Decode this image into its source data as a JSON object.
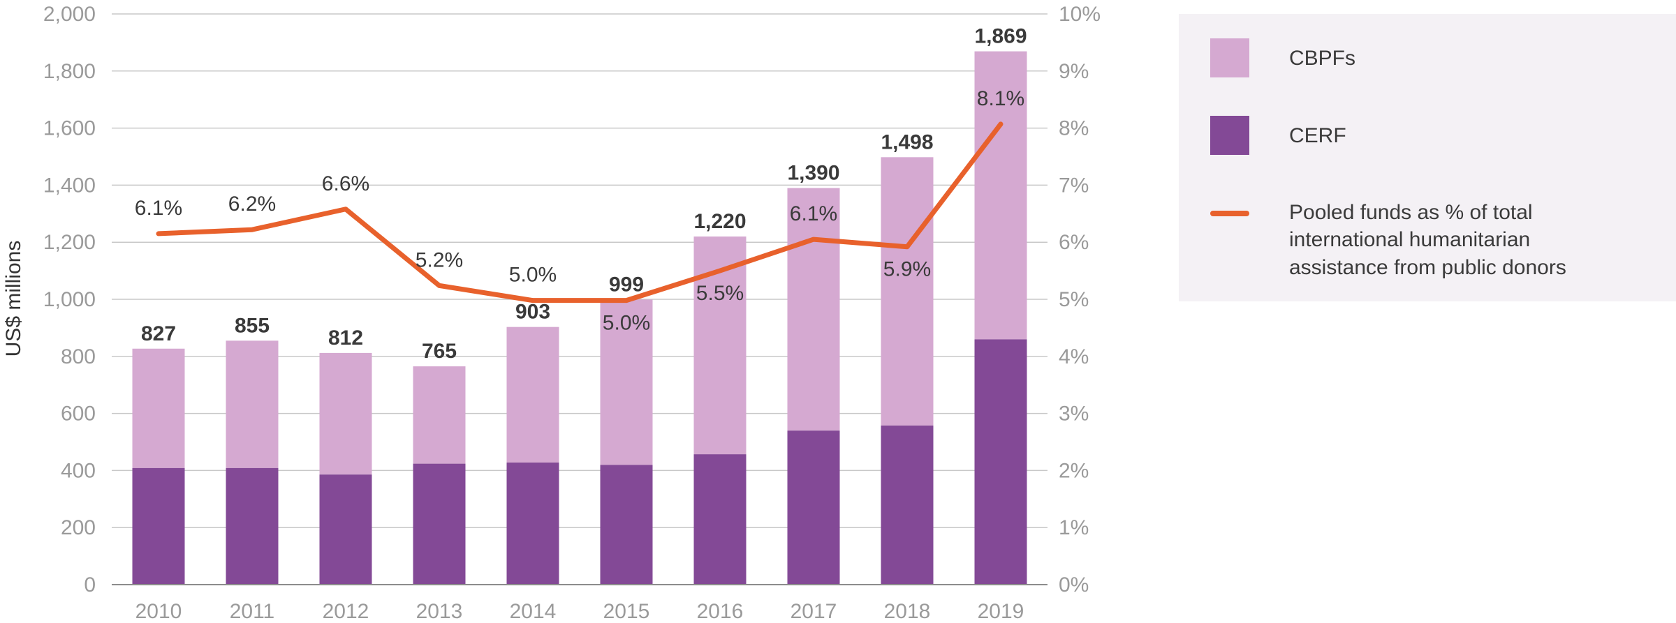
{
  "chart_data": {
    "type": "bar",
    "stacked": true,
    "categories": [
      "2010",
      "2011",
      "2012",
      "2013",
      "2014",
      "2015",
      "2016",
      "2017",
      "2018",
      "2019"
    ],
    "series": [
      {
        "name": "CERF",
        "color": "#834996",
        "values": [
          409,
          409,
          386,
          424,
          428,
          420,
          457,
          540,
          558,
          860
        ]
      },
      {
        "name": "CBPFs",
        "color": "#d5a9d1",
        "values": [
          418,
          446,
          426,
          341,
          475,
          579,
          763,
          850,
          940,
          1009
        ]
      }
    ],
    "totals": [
      "827",
      "855",
      "812",
      "765",
      "903",
      "999",
      "1,220",
      "1,390",
      "1,498",
      "1,869"
    ],
    "line_series": {
      "name": "Pooled funds as % of total international humanitarian assistance from public donors",
      "name_lines": [
        "Pooled funds as % of total",
        "international humanitarian",
        "assistance from public donors"
      ],
      "color": "#e8612c",
      "values": [
        6.15,
        6.22,
        6.58,
        5.24,
        4.98,
        4.98,
        5.5,
        6.05,
        5.92,
        8.07
      ],
      "labels": [
        "6.1%",
        "6.2%",
        "6.6%",
        "5.2%",
        "5.0%",
        "5.0%",
        "5.5%",
        "6.1%",
        "5.9%",
        "8.1%"
      ],
      "label_position": [
        "above",
        "above",
        "above",
        "above",
        "above",
        "below",
        "below",
        "above",
        "below",
        "above"
      ],
      "axis": "right"
    },
    "ylabel": "US$ millions",
    "ylim": [
      0,
      2000
    ],
    "y_ticks": [
      "0",
      "200",
      "400",
      "600",
      "800",
      "1,000",
      "1,200",
      "1,400",
      "1,600",
      "1,800",
      "2,000"
    ],
    "y2lim": [
      0,
      10
    ],
    "y2_ticks": [
      "0%",
      "1%",
      "2%",
      "3%",
      "4%",
      "5%",
      "6%",
      "7%",
      "8%",
      "9%",
      "10%"
    ],
    "grid": true,
    "legend_position": "right",
    "legend_colors": {
      "background": "#f4f1f5"
    }
  }
}
